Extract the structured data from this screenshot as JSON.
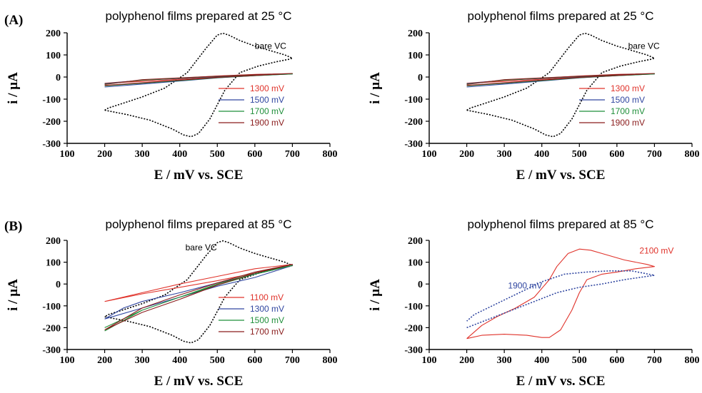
{
  "panel_labels": [
    "(A)",
    "(B)"
  ],
  "chart_data": [
    {
      "type": "line",
      "title": "polyphenol films prepared at 25 °C",
      "xlabel": "E / mV vs. SCE",
      "ylabel": "i / µA",
      "xlim": [
        100,
        800
      ],
      "ylim": [
        -300,
        200
      ],
      "xticks": [
        "100",
        "200",
        "300",
        "400",
        "500",
        "600",
        "700",
        "800"
      ],
      "yticks": [
        "-300",
        "-200",
        "-100",
        "0",
        "100",
        "200"
      ],
      "legend_position": "center-right",
      "annotations": [
        {
          "text": "bare VC",
          "x": 600,
          "y": 128,
          "color": "#000000"
        }
      ],
      "series": [
        {
          "name": "",
          "label": "bare VC",
          "color": "#000000",
          "style": "dotted",
          "legend": false,
          "x": [
            200,
            260,
            320,
            380,
            410,
            430,
            450,
            480,
            520,
            560,
            610,
            660,
            690,
            700,
            680,
            640,
            600,
            560,
            530,
            515,
            500,
            470,
            420,
            360,
            300,
            250,
            210,
            200
          ],
          "y": [
            -150,
            -170,
            -195,
            -235,
            -262,
            -270,
            -255,
            -190,
            -60,
            20,
            50,
            70,
            80,
            85,
            100,
            120,
            140,
            165,
            190,
            198,
            190,
            130,
            20,
            -50,
            -90,
            -118,
            -140,
            -150
          ]
        },
        {
          "name": "1300 mV",
          "color": "#e0332b",
          "style": "solid",
          "x": [
            200,
            300,
            400,
            500,
            600,
            700,
            600,
            500,
            400,
            300,
            200
          ],
          "y": [
            -28,
            -20,
            -10,
            0,
            8,
            15,
            12,
            5,
            -5,
            -15,
            -28
          ]
        },
        {
          "name": "1500 mV",
          "color": "#3046a0",
          "style": "solid",
          "x": [
            200,
            300,
            400,
            500,
            600,
            700,
            600,
            500,
            400,
            300,
            200
          ],
          "y": [
            -45,
            -32,
            -18,
            -4,
            6,
            14,
            9,
            2,
            -6,
            -14,
            -30
          ]
        },
        {
          "name": "1700 mV",
          "color": "#1f8f3a",
          "style": "solid",
          "x": [
            200,
            300,
            400,
            500,
            600,
            700,
            600,
            500,
            400,
            300,
            200
          ],
          "y": [
            -40,
            -28,
            -16,
            -3,
            6,
            14,
            10,
            3,
            -5,
            -14,
            -32
          ]
        },
        {
          "name": "1900 mV",
          "color": "#8a1c1c",
          "style": "solid",
          "x": [
            200,
            300,
            400,
            500,
            600,
            700,
            600,
            500,
            400,
            300,
            200
          ],
          "y": [
            -38,
            -26,
            -14,
            -2,
            7,
            16,
            11,
            4,
            -4,
            -12,
            -34
          ]
        }
      ]
    },
    {
      "type": "line",
      "title": "polyphenol films prepared at 25 °C",
      "xlabel": "E / mV vs. SCE",
      "ylabel": "i / µA",
      "xlim": [
        100,
        800
      ],
      "ylim": [
        -300,
        200
      ],
      "xticks": [
        "100",
        "200",
        "300",
        "400",
        "500",
        "600",
        "700",
        "800"
      ],
      "yticks": [
        "-300",
        "-200",
        "-100",
        "0",
        "100",
        "200"
      ],
      "legend_position": "center-right",
      "annotations": [
        {
          "text": "bare VC",
          "x": 630,
          "y": 128,
          "color": "#000000"
        }
      ],
      "series": [
        {
          "name": "",
          "label": "bare VC",
          "color": "#000000",
          "style": "dotted",
          "legend": false,
          "x": [
            200,
            260,
            320,
            380,
            410,
            430,
            450,
            480,
            520,
            560,
            610,
            660,
            690,
            700,
            680,
            640,
            600,
            560,
            530,
            515,
            500,
            470,
            420,
            360,
            300,
            250,
            210,
            200
          ],
          "y": [
            -150,
            -170,
            -195,
            -235,
            -262,
            -270,
            -255,
            -190,
            -60,
            20,
            50,
            70,
            80,
            85,
            100,
            120,
            140,
            165,
            190,
            198,
            190,
            130,
            20,
            -50,
            -90,
            -118,
            -140,
            -150
          ]
        },
        {
          "name": "1300 mV",
          "color": "#e0332b",
          "style": "solid",
          "x": [
            200,
            300,
            400,
            500,
            600,
            700,
            600,
            500,
            400,
            300,
            200
          ],
          "y": [
            -28,
            -20,
            -10,
            0,
            8,
            15,
            12,
            5,
            -5,
            -15,
            -28
          ]
        },
        {
          "name": "1500 mV",
          "color": "#3046a0",
          "style": "solid",
          "x": [
            200,
            300,
            400,
            500,
            600,
            700,
            600,
            500,
            400,
            300,
            200
          ],
          "y": [
            -45,
            -32,
            -18,
            -4,
            6,
            14,
            9,
            2,
            -6,
            -14,
            -30
          ]
        },
        {
          "name": "1700 mV",
          "color": "#1f8f3a",
          "style": "solid",
          "x": [
            200,
            300,
            400,
            500,
            600,
            700,
            600,
            500,
            400,
            300,
            200
          ],
          "y": [
            -40,
            -28,
            -16,
            -3,
            6,
            14,
            10,
            3,
            -5,
            -14,
            -32
          ]
        },
        {
          "name": "1900 mV",
          "color": "#8a1c1c",
          "style": "solid",
          "x": [
            200,
            300,
            400,
            500,
            600,
            700,
            600,
            500,
            400,
            300,
            200
          ],
          "y": [
            -38,
            -26,
            -14,
            -2,
            7,
            16,
            11,
            4,
            -4,
            -12,
            -34
          ]
        }
      ]
    },
    {
      "type": "line",
      "title": "polyphenol films prepared at 85 °C",
      "xlabel": "E / mV vs. SCE",
      "ylabel": "i / µA",
      "xlim": [
        100,
        800
      ],
      "ylim": [
        -300,
        200
      ],
      "xticks": [
        "100",
        "200",
        "300",
        "400",
        "500",
        "600",
        "700",
        "800"
      ],
      "yticks": [
        "-300",
        "-200",
        "-100",
        "0",
        "100",
        "200"
      ],
      "legend_position": "bottom-right",
      "annotations": [
        {
          "text": "bare VC",
          "x": 415,
          "y": 155,
          "color": "#000000"
        }
      ],
      "series": [
        {
          "name": "",
          "label": "bare VC",
          "color": "#000000",
          "style": "dotted",
          "legend": false,
          "x": [
            200,
            260,
            320,
            380,
            410,
            430,
            450,
            480,
            520,
            560,
            610,
            660,
            690,
            700,
            680,
            640,
            600,
            560,
            530,
            515,
            500,
            470,
            420,
            360,
            300,
            250,
            210,
            200
          ],
          "y": [
            -150,
            -170,
            -195,
            -235,
            -262,
            -270,
            -255,
            -190,
            -60,
            20,
            50,
            70,
            80,
            85,
            100,
            120,
            140,
            165,
            190,
            198,
            190,
            130,
            20,
            -50,
            -90,
            -118,
            -140,
            -150
          ]
        },
        {
          "name": "1100 mV",
          "color": "#e0332b",
          "style": "solid",
          "x": [
            200,
            300,
            400,
            500,
            600,
            700,
            600,
            500,
            400,
            300,
            200
          ],
          "y": [
            -80,
            -45,
            -15,
            15,
            50,
            90,
            70,
            35,
            0,
            -40,
            -80
          ]
        },
        {
          "name": "1300 mV",
          "color": "#3046a0",
          "style": "solid",
          "x": [
            200,
            250,
            300,
            400,
            500,
            600,
            700,
            600,
            500,
            400,
            300,
            200
          ],
          "y": [
            -160,
            -110,
            -80,
            -40,
            5,
            45,
            85,
            30,
            -10,
            -60,
            -110,
            -160
          ]
        },
        {
          "name": "1500 mV",
          "color": "#1f8f3a",
          "style": "solid",
          "x": [
            200,
            300,
            400,
            500,
            600,
            700,
            600,
            500,
            400,
            300,
            200
          ],
          "y": [
            -200,
            -120,
            -60,
            0,
            50,
            85,
            45,
            -5,
            -60,
            -120,
            -215
          ]
        },
        {
          "name": "1700 mV",
          "color": "#8a1c1c",
          "style": "solid",
          "x": [
            200,
            300,
            400,
            500,
            600,
            700,
            600,
            500,
            400,
            300,
            200
          ],
          "y": [
            -210,
            -130,
            -70,
            -5,
            50,
            90,
            55,
            5,
            -50,
            -110,
            -210
          ]
        }
      ]
    },
    {
      "type": "line",
      "title": "polyphenol films prepared at 85 °C",
      "xlabel": "E / mV vs. SCE",
      "ylabel": "i / µA",
      "xlim": [
        100,
        800
      ],
      "ylim": [
        -300,
        200
      ],
      "xticks": [
        "100",
        "200",
        "300",
        "400",
        "500",
        "600",
        "700",
        "800"
      ],
      "yticks": [
        "-300",
        "-200",
        "-100",
        "0",
        "100",
        "200"
      ],
      "legend_position": "none",
      "annotations": [
        {
          "text": "2100 mV",
          "x": 660,
          "y": 140,
          "color": "#e0332b"
        },
        {
          "text": "1900 mV",
          "x": 310,
          "y": -20,
          "color": "#3046a0"
        }
      ],
      "series": [
        {
          "name": "2100 mV",
          "color": "#e0332b",
          "style": "solid",
          "legend": false,
          "x": [
            200,
            240,
            300,
            360,
            400,
            420,
            450,
            480,
            500,
            520,
            560,
            600,
            650,
            700,
            680,
            620,
            560,
            530,
            500,
            470,
            440,
            420,
            380,
            330,
            280,
            240,
            200
          ],
          "y": [
            -250,
            -235,
            -230,
            -235,
            -245,
            -245,
            -210,
            -120,
            -40,
            20,
            45,
            55,
            70,
            80,
            90,
            110,
            140,
            155,
            160,
            140,
            80,
            20,
            -60,
            -110,
            -150,
            -190,
            -250
          ]
        },
        {
          "name": "1900 mV",
          "color": "#3046a0",
          "style": "dotted",
          "legend": false,
          "x": [
            200,
            260,
            320,
            380,
            440,
            500,
            560,
            620,
            700,
            640,
            580,
            520,
            460,
            400,
            340,
            280,
            220,
            200
          ],
          "y": [
            -200,
            -160,
            -120,
            -80,
            -40,
            -15,
            0,
            20,
            40,
            60,
            60,
            55,
            45,
            10,
            -40,
            -90,
            -140,
            -170
          ]
        }
      ]
    }
  ]
}
